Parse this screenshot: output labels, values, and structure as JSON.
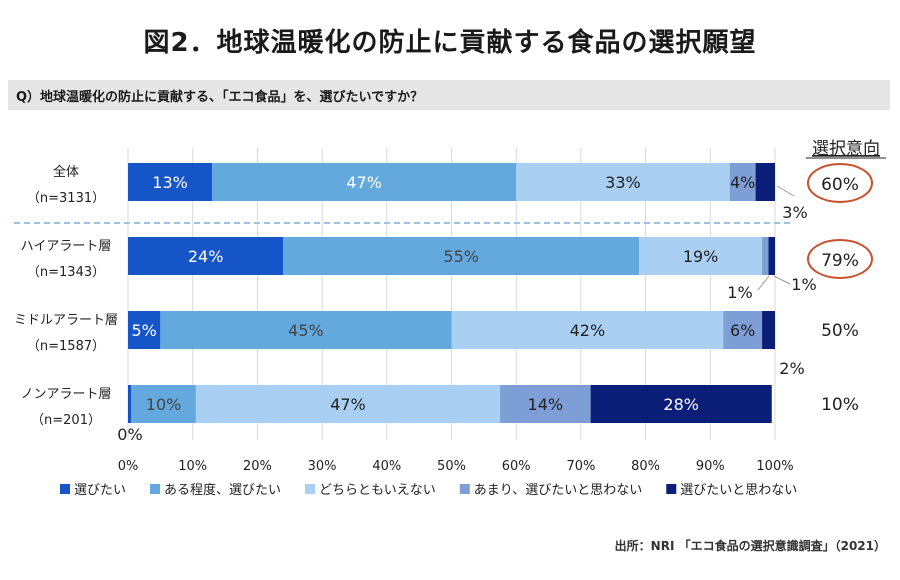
{
  "title": "図2．地球温暖化の防止に貢献する食品の選択願望",
  "question": "Q）地球温暖化の防止に貢献する、「エコ食品」を、選びたいですか？",
  "source": "出所：NRI 「エコ食品の選択意識調査」（2021）",
  "chart_data": {
    "type": "bar",
    "orientation": "horizontal",
    "stacked": "percent",
    "categories": [
      {
        "name": "全体",
        "n": "（n=3131）"
      },
      {
        "name": "ハイアラート層",
        "n": "（n=1343）"
      },
      {
        "name": "ミドルアラート層",
        "n": "（n=1587）"
      },
      {
        "name": "ノンアラート層",
        "n": "（n=201）"
      }
    ],
    "series": [
      {
        "name": "選びたい",
        "color": "#1655c8",
        "values": [
          13,
          24,
          5,
          0.5
        ],
        "labels": [
          "13%",
          "24%",
          "5%",
          "0%"
        ],
        "label_colors": [
          "#ffffff",
          "#ffffff",
          "#ffffff",
          "#222222"
        ]
      },
      {
        "name": "ある程度、選びたい",
        "color": "#63a9de",
        "values": [
          47,
          55,
          45,
          10
        ],
        "labels": [
          "47%",
          "55%",
          "45%",
          "10%"
        ],
        "label_colors": [
          "#ffffff",
          "#444444",
          "#444444",
          "#444444"
        ]
      },
      {
        "name": "どちらともいえない",
        "color": "#a9d0f2",
        "values": [
          33,
          19,
          42,
          47
        ],
        "labels": [
          "33%",
          "19%",
          "42%",
          "47%"
        ],
        "label_colors": [
          "#222222",
          "#222222",
          "#222222",
          "#222222"
        ]
      },
      {
        "name": "あまり、選びたいと思わない",
        "color": "#7e9ed6",
        "values": [
          4,
          1,
          6,
          14
        ],
        "labels": [
          "4%",
          "1%",
          "6%",
          "14%"
        ],
        "label_colors": [
          "#222222",
          "#222222",
          "#222222",
          "#222222"
        ]
      },
      {
        "name": "選びたいと思わない",
        "color": "#0c1f78",
        "values": [
          3,
          1,
          2,
          28
        ],
        "labels": [
          "3%",
          "1%",
          "2%",
          "28%"
        ],
        "label_colors": [
          "#222222",
          "#222222",
          "#222222",
          "#ffffff"
        ]
      }
    ],
    "selection_intent": {
      "header": "選択意向",
      "values": [
        "60%",
        "79%",
        "50%",
        "10%"
      ],
      "circled": [
        true,
        true,
        false,
        false
      ]
    },
    "xlim": [
      0,
      100
    ],
    "x_ticks": [
      "0%",
      "10%",
      "20%",
      "30%",
      "40%",
      "50%",
      "60%",
      "70%",
      "80%",
      "90%",
      "100%"
    ],
    "grid": true,
    "legend_position": "bottom"
  }
}
